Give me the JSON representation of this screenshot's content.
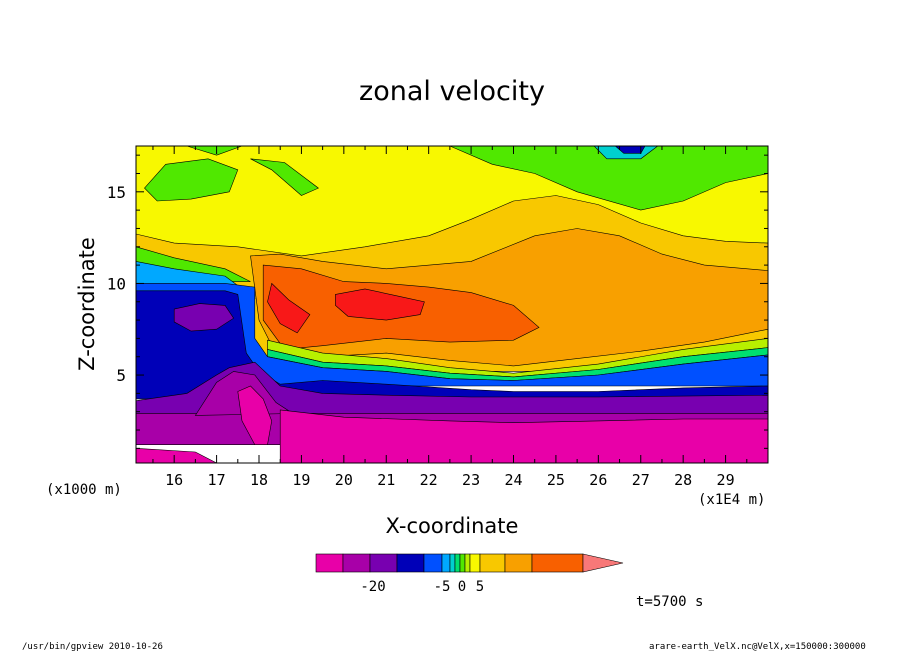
{
  "chart_data": {
    "type": "heatmap",
    "title": "zonal velocity",
    "xlabel": "X-coordinate",
    "ylabel": "Z-coordinate",
    "x_unit": "(x1000 m)",
    "x_scale": "(x1E4 m)",
    "time_label": "t=5700 s",
    "xlim": [
      15.1,
      30.0
    ],
    "ylim": [
      0.2,
      17.5
    ],
    "x_ticks": [
      "16",
      "17",
      "18",
      "19",
      "20",
      "21",
      "22",
      "23",
      "24",
      "25",
      "26",
      "27",
      "28",
      "29"
    ],
    "x_tick_values": [
      16,
      17,
      18,
      19,
      20,
      21,
      22,
      23,
      24,
      25,
      26,
      27,
      28,
      29
    ],
    "y_ticks": [
      "5",
      "10",
      "15"
    ],
    "y_tick_values": [
      5,
      10,
      15
    ],
    "colorbar": {
      "tick_labels": [
        "-20",
        "-5",
        "0",
        "5"
      ],
      "tick_values": [
        -20,
        -5,
        0,
        5
      ],
      "levels": [
        -30,
        -25,
        -20,
        -15,
        -10,
        -5,
        -2,
        -1,
        0,
        1,
        2,
        5,
        10,
        15,
        20
      ],
      "colors": [
        "#e800a8",
        "#a800a8",
        "#7800b0",
        "#0000b8",
        "#0050ff",
        "#00a8ff",
        "#00d0d0",
        "#00e070",
        "#50e800",
        "#b8f000",
        "#f8f800",
        "#f8c800",
        "#f8a000",
        "#f86000",
        "#f81818"
      ],
      "overflow_color": "#f87878"
    },
    "bands": [
      {
        "color": "#f8f800",
        "points": [
          [
            15.1,
            17.5
          ],
          [
            30.0,
            17.5
          ],
          [
            30.0,
            10.8
          ],
          [
            15.1,
            10.8
          ]
        ]
      },
      {
        "color": "#50e800",
        "points": [
          [
            15.3,
            15.2
          ],
          [
            15.8,
            16.5
          ],
          [
            16.8,
            16.8
          ],
          [
            17.5,
            16.2
          ],
          [
            17.3,
            15.0
          ],
          [
            16.4,
            14.6
          ],
          [
            15.6,
            14.5
          ]
        ]
      },
      {
        "color": "#50e800",
        "points": [
          [
            16.3,
            17.5
          ],
          [
            17.0,
            17.0
          ],
          [
            17.6,
            17.5
          ]
        ]
      },
      {
        "color": "#50e800",
        "points": [
          [
            17.8,
            16.8
          ],
          [
            18.3,
            16.2
          ],
          [
            19.0,
            14.8
          ],
          [
            19.4,
            15.2
          ],
          [
            18.6,
            16.6
          ]
        ]
      },
      {
        "color": "#50e800",
        "points": [
          [
            22.5,
            17.5
          ],
          [
            23.5,
            16.5
          ],
          [
            24.5,
            16.0
          ],
          [
            25.5,
            15.0
          ],
          [
            27.0,
            14.0
          ],
          [
            28.0,
            14.5
          ],
          [
            29.0,
            15.5
          ],
          [
            30.0,
            16.0
          ],
          [
            30.0,
            17.5
          ]
        ]
      },
      {
        "color": "#00d0d0",
        "points": [
          [
            25.9,
            17.5
          ],
          [
            26.2,
            16.8
          ],
          [
            27.0,
            16.8
          ],
          [
            27.4,
            17.5
          ]
        ]
      },
      {
        "color": "#0000b8",
        "points": [
          [
            26.4,
            17.5
          ],
          [
            26.6,
            17.1
          ],
          [
            27.0,
            17.1
          ],
          [
            27.1,
            17.5
          ]
        ]
      },
      {
        "color": "#f8c800",
        "points": [
          [
            15.1,
            12.7
          ],
          [
            16.0,
            12.2
          ],
          [
            17.5,
            12.0
          ],
          [
            19.0,
            11.5
          ],
          [
            20.5,
            12.0
          ],
          [
            22.0,
            12.6
          ],
          [
            23.0,
            13.5
          ],
          [
            24.0,
            14.5
          ],
          [
            25.0,
            14.8
          ],
          [
            26.0,
            14.3
          ],
          [
            27.0,
            13.3
          ],
          [
            28.0,
            12.6
          ],
          [
            29.0,
            12.3
          ],
          [
            30.0,
            12.2
          ],
          [
            30.0,
            5.2
          ],
          [
            15.1,
            5.2
          ]
        ]
      },
      {
        "color": "#50e800",
        "points": [
          [
            15.1,
            12.0
          ],
          [
            16.0,
            11.4
          ],
          [
            17.2,
            10.8
          ],
          [
            17.8,
            10.1
          ],
          [
            15.1,
            10.1
          ]
        ]
      },
      {
        "color": "#00a8ff",
        "points": [
          [
            15.1,
            11.2
          ],
          [
            16.0,
            10.8
          ],
          [
            17.2,
            10.4
          ],
          [
            17.9,
            9.2
          ],
          [
            15.1,
            9.2
          ]
        ]
      },
      {
        "color": "#f8a000",
        "points": [
          [
            17.8,
            11.5
          ],
          [
            18.5,
            11.6
          ],
          [
            19.5,
            11.2
          ],
          [
            21.0,
            10.8
          ],
          [
            23.0,
            11.2
          ],
          [
            24.5,
            12.6
          ],
          [
            25.5,
            13.0
          ],
          [
            26.5,
            12.6
          ],
          [
            27.5,
            11.6
          ],
          [
            28.5,
            11.0
          ],
          [
            30.0,
            10.7
          ],
          [
            30.0,
            7.5
          ],
          [
            28.5,
            6.8
          ],
          [
            27.0,
            6.3
          ],
          [
            25.5,
            5.9
          ],
          [
            24.0,
            5.5
          ],
          [
            22.5,
            5.8
          ],
          [
            21.0,
            6.2
          ],
          [
            19.5,
            6.0
          ],
          [
            18.5,
            5.7
          ],
          [
            18.0,
            8.0
          ]
        ]
      },
      {
        "color": "#f86000",
        "points": [
          [
            18.1,
            11.0
          ],
          [
            19.0,
            10.8
          ],
          [
            20.0,
            10.1
          ],
          [
            21.0,
            10.0
          ],
          [
            22.0,
            9.8
          ],
          [
            23.0,
            9.5
          ],
          [
            24.0,
            8.8
          ],
          [
            24.6,
            7.6
          ],
          [
            24.0,
            6.9
          ],
          [
            22.5,
            6.8
          ],
          [
            21.0,
            7.0
          ],
          [
            19.5,
            6.6
          ],
          [
            18.6,
            6.4
          ],
          [
            18.1,
            8.0
          ]
        ]
      },
      {
        "color": "#f81818",
        "points": [
          [
            18.3,
            10.0
          ],
          [
            18.7,
            9.1
          ],
          [
            19.2,
            8.3
          ],
          [
            18.9,
            7.3
          ],
          [
            18.5,
            7.8
          ],
          [
            18.2,
            9.0
          ]
        ]
      },
      {
        "color": "#f81818",
        "points": [
          [
            19.8,
            9.4
          ],
          [
            20.5,
            9.7
          ],
          [
            21.3,
            9.3
          ],
          [
            21.9,
            9.0
          ],
          [
            21.8,
            8.3
          ],
          [
            21.0,
            8.0
          ],
          [
            20.1,
            8.2
          ],
          [
            19.8,
            8.8
          ]
        ]
      },
      {
        "color": "#b8f000",
        "points": [
          [
            18.2,
            6.9
          ],
          [
            19.5,
            6.2
          ],
          [
            21.0,
            5.9
          ],
          [
            22.5,
            5.4
          ],
          [
            24.0,
            5.1
          ],
          [
            26.0,
            5.6
          ],
          [
            28.0,
            6.4
          ],
          [
            30.0,
            7.0
          ],
          [
            30.0,
            6.5
          ],
          [
            28.0,
            6.0
          ],
          [
            26.0,
            5.3
          ],
          [
            24.0,
            4.9
          ],
          [
            22.5,
            5.1
          ],
          [
            21.0,
            5.5
          ],
          [
            19.5,
            5.7
          ],
          [
            18.2,
            6.4
          ]
        ]
      },
      {
        "color": "#00e070",
        "points": [
          [
            18.2,
            6.4
          ],
          [
            19.5,
            5.7
          ],
          [
            21.0,
            5.5
          ],
          [
            22.5,
            5.1
          ],
          [
            24.0,
            4.9
          ],
          [
            26.0,
            5.3
          ],
          [
            28.0,
            6.0
          ],
          [
            30.0,
            6.5
          ],
          [
            30.0,
            6.1
          ],
          [
            28.0,
            5.6
          ],
          [
            26.0,
            5.0
          ],
          [
            24.0,
            4.7
          ],
          [
            22.5,
            4.8
          ],
          [
            21.0,
            5.2
          ],
          [
            19.5,
            5.4
          ],
          [
            18.2,
            6.0
          ]
        ]
      },
      {
        "color": "#0050ff",
        "points": [
          [
            15.1,
            10.0
          ],
          [
            17.2,
            10.0
          ],
          [
            17.9,
            9.8
          ],
          [
            17.9,
            7.0
          ],
          [
            18.2,
            6.0
          ],
          [
            19.5,
            5.4
          ],
          [
            21.0,
            5.2
          ],
          [
            22.5,
            4.8
          ],
          [
            24.0,
            4.7
          ],
          [
            26.0,
            5.0
          ],
          [
            28.0,
            5.6
          ],
          [
            30.0,
            6.1
          ],
          [
            30.0,
            4.4
          ],
          [
            15.1,
            4.4
          ]
        ]
      },
      {
        "color": "#0000b8",
        "points": [
          [
            15.1,
            9.6
          ],
          [
            17.2,
            9.6
          ],
          [
            17.5,
            9.4
          ],
          [
            17.7,
            6.2
          ],
          [
            18.0,
            5.2
          ],
          [
            18.5,
            4.5
          ],
          [
            19.5,
            4.7
          ],
          [
            21.0,
            4.5
          ],
          [
            23.0,
            4.2
          ],
          [
            24.0,
            4.1
          ],
          [
            26.0,
            4.1
          ],
          [
            28.0,
            4.3
          ],
          [
            30.0,
            4.4
          ],
          [
            30.0,
            3.7
          ],
          [
            15.1,
            3.7
          ]
        ]
      },
      {
        "color": "#7800b0",
        "points": [
          [
            16.0,
            8.6
          ],
          [
            16.6,
            8.9
          ],
          [
            17.2,
            8.8
          ],
          [
            17.4,
            8.1
          ],
          [
            17.0,
            7.5
          ],
          [
            16.4,
            7.4
          ],
          [
            16.0,
            7.9
          ]
        ]
      },
      {
        "color": "#7800b0",
        "points": [
          [
            15.1,
            3.6
          ],
          [
            16.3,
            4.0
          ],
          [
            17.0,
            5.0
          ],
          [
            17.3,
            5.4
          ],
          [
            17.9,
            5.7
          ],
          [
            18.5,
            4.4
          ],
          [
            19.5,
            4.0
          ],
          [
            21.0,
            3.9
          ],
          [
            23.0,
            3.8
          ],
          [
            26.0,
            3.8
          ],
          [
            30.0,
            3.9
          ],
          [
            30.0,
            2.9
          ],
          [
            15.1,
            2.9
          ]
        ]
      },
      {
        "color": "#a800a8",
        "points": [
          [
            15.1,
            2.9
          ],
          [
            30.0,
            2.9
          ],
          [
            30.0,
            1.2
          ],
          [
            15.1,
            1.2
          ]
        ]
      },
      {
        "color": "#a800a8",
        "points": [
          [
            16.5,
            2.8
          ],
          [
            17.0,
            4.6
          ],
          [
            17.4,
            5.2
          ],
          [
            17.9,
            5.0
          ],
          [
            18.4,
            3.5
          ],
          [
            18.8,
            2.9
          ]
        ]
      },
      {
        "color": "#e800a8",
        "points": [
          [
            17.5,
            4.1
          ],
          [
            17.8,
            4.4
          ],
          [
            18.1,
            3.7
          ],
          [
            18.3,
            2.5
          ],
          [
            18.2,
            1.2
          ],
          [
            17.9,
            1.2
          ],
          [
            17.6,
            2.5
          ]
        ]
      },
      {
        "color": "#e800a8",
        "points": [
          [
            18.5,
            3.1
          ],
          [
            20.0,
            2.7
          ],
          [
            22.5,
            2.5
          ],
          [
            24.0,
            2.4
          ],
          [
            26.0,
            2.5
          ],
          [
            28.0,
            2.6
          ],
          [
            30.0,
            2.6
          ],
          [
            30.0,
            0.2
          ],
          [
            18.5,
            0.2
          ]
        ]
      },
      {
        "color": "#e800a8",
        "points": [
          [
            15.1,
            1.0
          ],
          [
            16.5,
            0.8
          ],
          [
            17.0,
            0.2
          ],
          [
            15.1,
            0.2
          ]
        ]
      }
    ]
  },
  "footer": {
    "left": "/usr/bin/gpview   2010-10-26",
    "right": "arare-earth_VelX.nc@VelX,x=150000:300000"
  }
}
